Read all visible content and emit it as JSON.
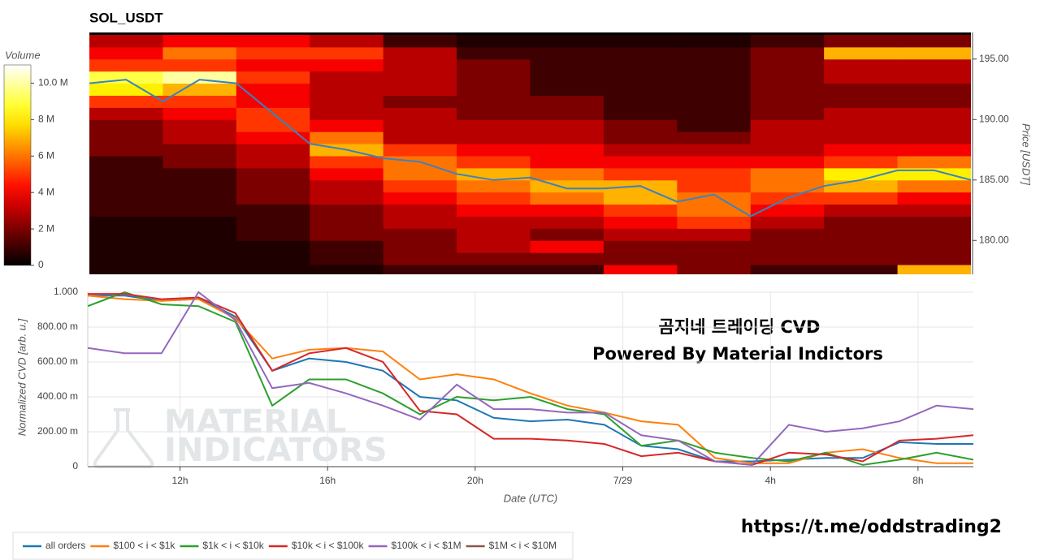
{
  "chart_data": [
    {
      "type": "heatmap",
      "title": "SOL_USDT",
      "colorbar_title": "Volume",
      "y_label": "Price [USDT]",
      "xlim": [
        9.5,
        33.5
      ],
      "ylim": [
        177.2,
        197.2
      ],
      "yticks": [
        {
          "value": 180,
          "label": "180.00"
        },
        {
          "value": 185,
          "label": "185.00"
        },
        {
          "value": 190,
          "label": "190.00"
        },
        {
          "value": 195,
          "label": "195.00"
        }
      ],
      "clim": [
        0,
        11
      ],
      "cticks": [
        0,
        {
          "value": 2,
          "label": "2 M"
        },
        {
          "value": 4,
          "label": "4 M"
        },
        {
          "value": 6,
          "label": "6 M"
        },
        {
          "value": 8,
          "label": "8 M"
        },
        {
          "value": 10,
          "label": "10.0 M"
        }
      ],
      "xbins": [
        9.5,
        11.5,
        13.5,
        15.5,
        17.5,
        19.5,
        21.5,
        23.5,
        25.5,
        27.5,
        29.5,
        31.5,
        33.5
      ],
      "ybins": [
        177,
        178,
        179,
        180,
        181,
        182,
        183,
        184,
        185,
        186,
        187,
        188,
        189,
        190,
        191,
        192,
        193,
        194,
        195,
        196,
        197
      ],
      "z": [
        [
          0.5,
          0.5,
          0.5,
          0.5,
          1,
          1,
          1,
          4,
          2,
          1,
          1,
          7
        ],
        [
          0.5,
          0.5,
          0.5,
          1,
          2,
          2,
          2,
          2,
          2,
          2,
          2,
          2
        ],
        [
          0.5,
          0.5,
          0.5,
          1,
          2,
          3,
          4,
          2,
          2,
          2,
          2,
          2
        ],
        [
          0.5,
          0.5,
          1,
          2,
          2,
          3,
          2,
          3,
          3,
          2,
          2,
          2
        ],
        [
          0.5,
          0.5,
          1,
          2,
          3,
          3,
          3,
          4,
          5,
          3,
          2,
          2
        ],
        [
          1,
          1,
          1,
          2,
          3,
          4,
          4,
          5,
          6,
          4,
          3,
          3
        ],
        [
          1,
          1,
          2,
          3,
          4,
          5,
          6,
          7,
          6,
          5,
          5,
          4
        ],
        [
          1,
          1,
          2,
          3,
          5,
          6,
          7,
          7,
          5,
          6,
          7,
          6
        ],
        [
          1,
          1,
          2,
          4,
          6,
          7,
          6,
          5,
          5,
          6,
          8,
          8
        ],
        [
          1,
          2,
          3,
          5,
          6,
          5,
          4,
          4,
          4,
          4,
          5,
          6
        ],
        [
          2,
          2,
          3,
          7,
          5,
          4,
          4,
          3,
          3,
          3,
          4,
          4
        ],
        [
          2,
          3,
          4,
          6,
          3,
          3,
          3,
          2,
          2,
          3,
          3,
          3
        ],
        [
          2,
          3,
          5,
          4,
          3,
          3,
          3,
          2,
          1,
          3,
          3,
          3
        ],
        [
          3,
          4,
          5,
          3,
          3,
          2,
          2,
          1,
          1,
          2,
          3,
          3
        ],
        [
          5,
          5,
          4,
          3,
          2,
          2,
          2,
          1,
          1,
          2,
          2,
          2
        ],
        [
          8,
          7,
          4,
          3,
          3,
          2,
          1,
          1,
          1,
          2,
          2,
          2
        ],
        [
          9,
          10,
          5,
          3,
          3,
          2,
          1,
          1,
          1,
          2,
          3,
          3
        ],
        [
          5,
          5,
          4,
          4,
          3,
          2,
          1,
          1,
          1,
          2,
          3,
          3
        ],
        [
          4,
          6,
          5,
          5,
          3,
          1,
          1,
          1,
          1,
          2,
          7,
          7
        ],
        [
          3,
          4,
          4,
          3,
          1,
          0.5,
          0.5,
          0.5,
          0.5,
          1,
          2,
          2
        ]
      ],
      "line": {
        "color": "#3b82c0",
        "x": [
          9.5,
          10.5,
          11.5,
          12.5,
          13.5,
          14.5,
          15.5,
          16.5,
          17.5,
          18.5,
          19.5,
          20.5,
          21.5,
          22.5,
          23.5,
          24.5,
          25.5,
          26.5,
          27.5,
          28.5,
          29.5,
          30.5,
          31.5,
          32.5,
          33.5
        ],
        "values": [
          193.0,
          193.3,
          191.5,
          193.3,
          193.0,
          190.5,
          188.0,
          187.5,
          186.8,
          186.5,
          185.5,
          185.0,
          185.2,
          184.3,
          184.3,
          184.5,
          183.2,
          183.8,
          182.0,
          183.5,
          184.5,
          185.0,
          185.8,
          185.8,
          185.0
        ]
      }
    },
    {
      "type": "line",
      "x_label": "Date (UTC)",
      "y_label": "Normalized CVD [arb. u.]",
      "grid": true,
      "legend": "bottom-left",
      "xlim": [
        9.5,
        33.5
      ],
      "ylim": [
        0,
        1
      ],
      "xticks": [
        {
          "value": 12,
          "label": "12h"
        },
        {
          "value": 16,
          "label": "16h"
        },
        {
          "value": 20,
          "label": "20h"
        },
        {
          "value": 24,
          "label": "7/29"
        },
        {
          "value": 28,
          "label": "4h"
        },
        {
          "value": 32,
          "label": "8h"
        }
      ],
      "yticks": [
        0,
        {
          "value": 0.2,
          "label": "200.00 m"
        },
        {
          "value": 0.4,
          "label": "400.00 m"
        },
        {
          "value": 0.6,
          "label": "600.00 m"
        },
        {
          "value": 0.8,
          "label": "800.00 m"
        },
        {
          "value": 1,
          "label": "1.000"
        }
      ],
      "x": [
        9.5,
        10.5,
        11.5,
        12.5,
        13.5,
        14.5,
        15.5,
        16.5,
        17.5,
        18.5,
        19.5,
        20.5,
        21.5,
        22.5,
        23.5,
        24.5,
        25.5,
        26.5,
        27.5,
        28.5,
        29.5,
        30.5,
        31.5,
        32.5,
        33.5
      ],
      "series": [
        {
          "name": "all orders",
          "color": "#1f77b4",
          "values": [
            0.98,
            0.98,
            0.95,
            0.97,
            0.86,
            0.55,
            0.62,
            0.6,
            0.55,
            0.4,
            0.38,
            0.28,
            0.26,
            0.27,
            0.24,
            0.12,
            0.1,
            0.03,
            0.03,
            0.04,
            0.05,
            0.05,
            0.14,
            0.13,
            0.13
          ]
        },
        {
          "name": "$100 < i < $1k",
          "color": "#ff7f0e",
          "values": [
            0.98,
            0.96,
            0.95,
            0.96,
            0.85,
            0.62,
            0.67,
            0.68,
            0.66,
            0.5,
            0.53,
            0.5,
            0.42,
            0.35,
            0.31,
            0.26,
            0.24,
            0.05,
            0.02,
            0.02,
            0.08,
            0.1,
            0.05,
            0.02,
            0.02
          ]
        },
        {
          "name": "$1k < i < $10k",
          "color": "#2ca02c",
          "values": [
            0.92,
            1.0,
            0.93,
            0.92,
            0.83,
            0.35,
            0.5,
            0.5,
            0.42,
            0.3,
            0.4,
            0.38,
            0.4,
            0.33,
            0.3,
            0.12,
            0.15,
            0.08,
            0.05,
            0.03,
            0.08,
            0.01,
            0.04,
            0.08,
            0.04
          ]
        },
        {
          "name": "$10k < i < $100k",
          "color": "#d62728",
          "values": [
            0.99,
            0.99,
            0.96,
            0.97,
            0.88,
            0.55,
            0.65,
            0.68,
            0.6,
            0.32,
            0.3,
            0.16,
            0.16,
            0.15,
            0.13,
            0.06,
            0.08,
            0.03,
            0.01,
            0.08,
            0.07,
            0.03,
            0.15,
            0.16,
            0.18
          ]
        },
        {
          "name": "$100k < i < $1M",
          "color": "#9467bd",
          "values": [
            0.68,
            0.65,
            0.65,
            1.0,
            0.84,
            0.45,
            0.48,
            0.42,
            0.35,
            0.27,
            0.47,
            0.33,
            0.33,
            0.31,
            0.31,
            0.18,
            0.15,
            0.03,
            0.01,
            0.24,
            0.2,
            0.22,
            0.26,
            0.35,
            0.33
          ]
        },
        {
          "name": "$1M < i < $10M",
          "color": "#8c564b",
          "values": [
            null,
            null,
            null,
            null,
            null,
            null,
            null,
            null,
            null,
            null,
            null,
            null,
            null,
            null,
            null,
            null,
            null,
            null,
            null,
            null,
            null,
            null,
            null,
            null,
            null
          ]
        }
      ]
    }
  ],
  "annotations": [
    "곰지네 트레이딩 CVD",
    "Powered By Material Indictors"
  ],
  "watermark": [
    "MATERIAL",
    "INDICATORS"
  ],
  "link": "https://t.me/oddstrading2"
}
